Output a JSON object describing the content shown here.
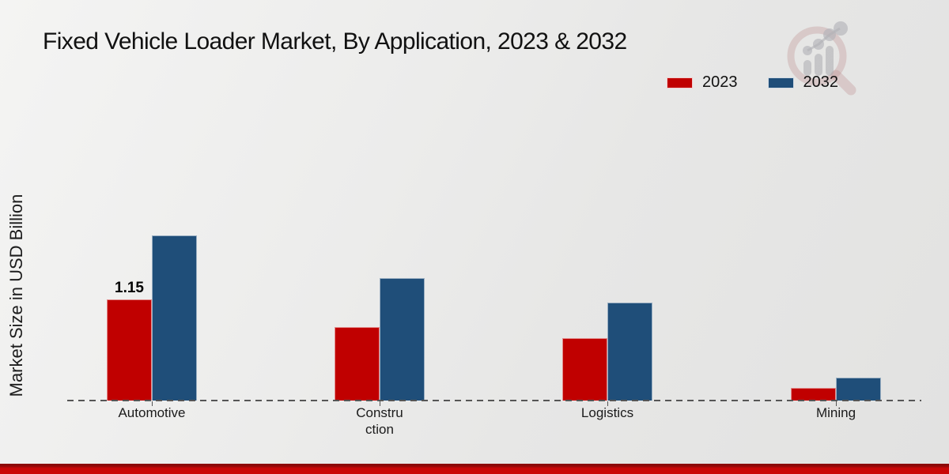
{
  "title": "Fixed Vehicle Loader Market, By Application, 2023 & 2032",
  "y_axis_label": "Market Size in USD Billion",
  "legend": {
    "items": [
      {
        "label": "2023",
        "color": "#c00000"
      },
      {
        "label": "2032",
        "color": "#1f4e79"
      }
    ]
  },
  "annotations": {
    "automotive_2023_value_label": "1.15"
  },
  "watermark_icon": "magnifier-growth-chart-logo",
  "footer_accent_color": "#ca0707",
  "chart_data": {
    "type": "bar",
    "title": "Fixed Vehicle Loader Market, By Application, 2023 & 2032",
    "xlabel": "",
    "ylabel": "Market Size in USD Billion",
    "categories": [
      "Automotive",
      "Construction",
      "Logistics",
      "Mining"
    ],
    "category_label_lines": [
      [
        "Automotive"
      ],
      [
        "Constru",
        "ction"
      ],
      [
        "Logistics"
      ],
      [
        "Mining"
      ]
    ],
    "series": [
      {
        "name": "2023",
        "color": "#c00000",
        "values": [
          1.15,
          0.84,
          0.71,
          0.14
        ]
      },
      {
        "name": "2032",
        "color": "#1f4e79",
        "values": [
          1.88,
          1.39,
          1.11,
          0.26
        ]
      }
    ],
    "data_labels": [
      {
        "series": "2023",
        "category": "Automotive",
        "text": "1.15"
      }
    ],
    "ylim": [
      0,
      2.0
    ],
    "grid": false,
    "baseline_style": "dashed",
    "legend_position": "top-right"
  }
}
